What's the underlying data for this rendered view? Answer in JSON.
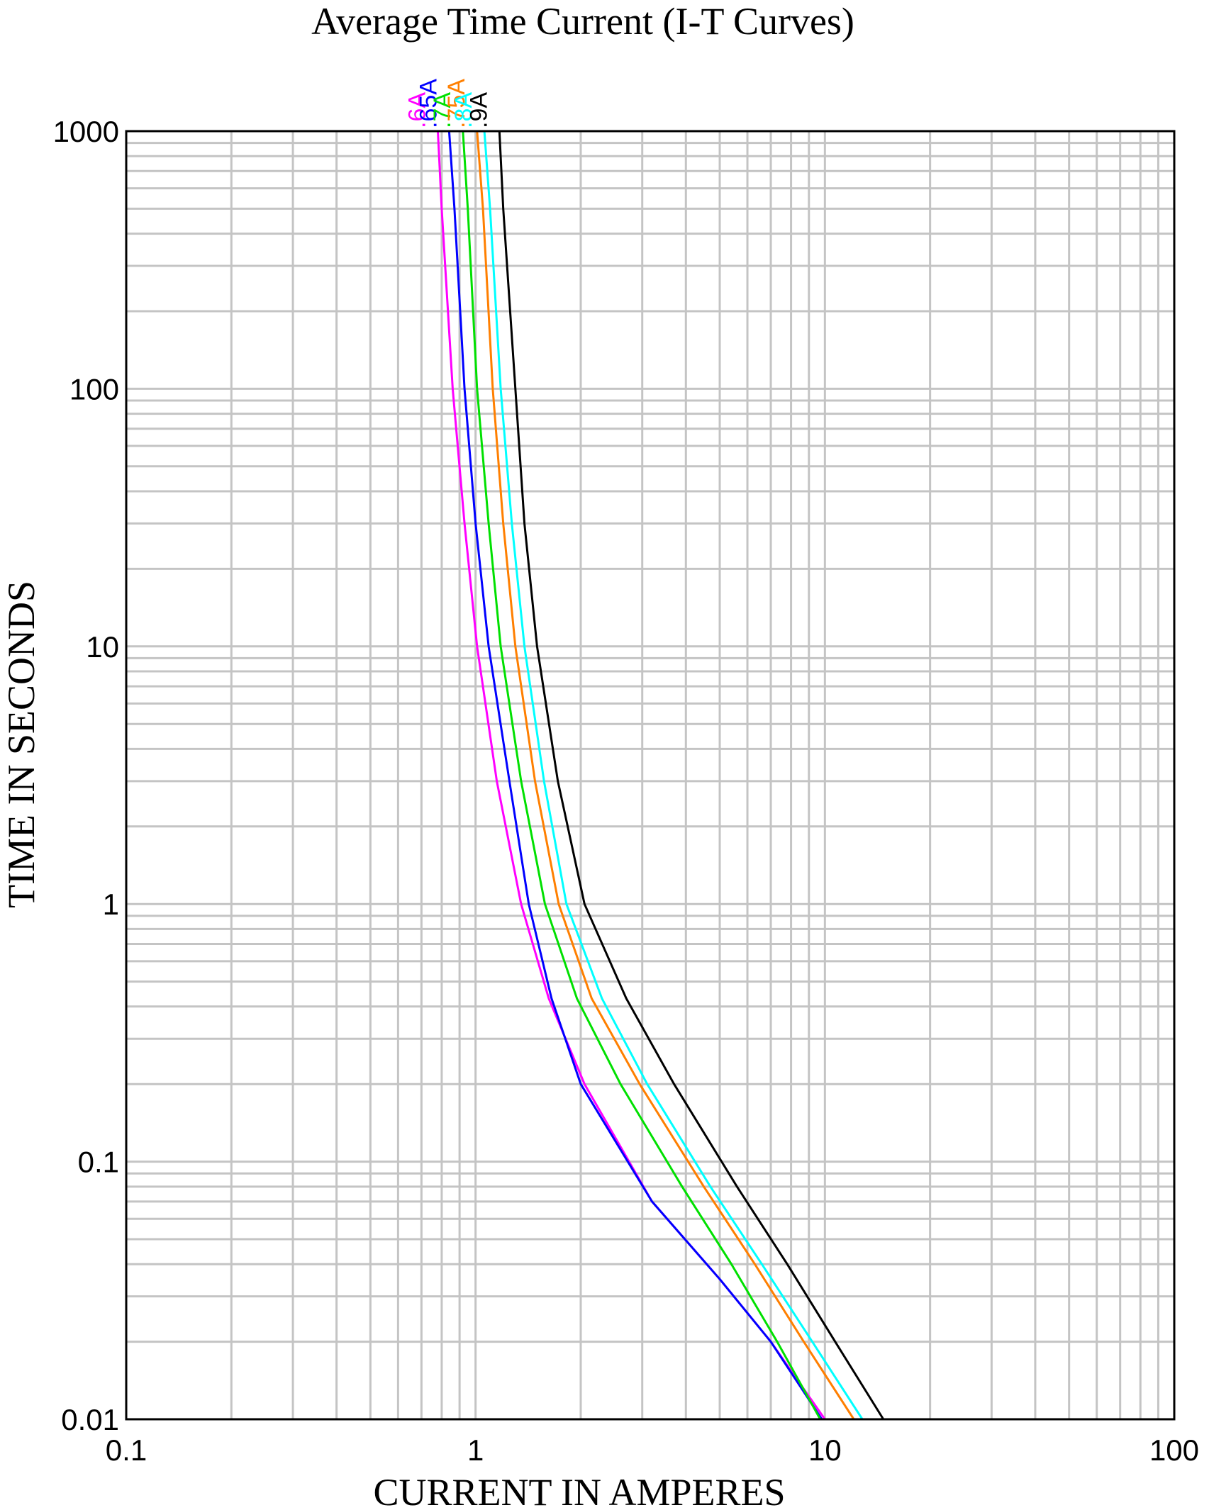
{
  "chart_data": {
    "type": "line",
    "title": "Average Time Current (I-T Curves)",
    "xlabel": "CURRENT IN AMPERES",
    "ylabel": "TIME IN SECONDS",
    "xscale": "log",
    "yscale": "log",
    "xlim": [
      0.1,
      100
    ],
    "ylim": [
      0.01,
      1000
    ],
    "grid": true,
    "xticks": [
      {
        "value": 0.1,
        "label": "0.1"
      },
      {
        "value": 1,
        "label": "1"
      },
      {
        "value": 10,
        "label": "10"
      },
      {
        "value": 100,
        "label": "100"
      }
    ],
    "yticks": [
      {
        "value": 0.01,
        "label": "0.01"
      },
      {
        "value": 0.1,
        "label": "0.1"
      },
      {
        "value": 1,
        "label": "1"
      },
      {
        "value": 10,
        "label": "10"
      },
      {
        "value": 100,
        "label": "100"
      },
      {
        "value": 1000,
        "label": "1000"
      }
    ],
    "series": [
      {
        "name": ".6A",
        "color": "#ff00ff",
        "points": [
          [
            0.78,
            1000
          ],
          [
            0.8,
            500
          ],
          [
            0.86,
            100
          ],
          [
            0.93,
            30
          ],
          [
            1.01,
            10
          ],
          [
            1.15,
            3
          ],
          [
            1.35,
            1
          ],
          [
            1.62,
            0.43
          ],
          [
            2.05,
            0.2
          ],
          [
            3.2,
            0.07
          ],
          [
            5.0,
            0.035
          ],
          [
            7.0,
            0.02
          ],
          [
            10.0,
            0.01
          ]
        ]
      },
      {
        "name": ".65A",
        "color": "#0000ff",
        "points": [
          [
            0.84,
            1000
          ],
          [
            0.87,
            500
          ],
          [
            0.93,
            100
          ],
          [
            1.0,
            30
          ],
          [
            1.09,
            10
          ],
          [
            1.25,
            3
          ],
          [
            1.42,
            1
          ],
          [
            1.65,
            0.43
          ],
          [
            2.0,
            0.2
          ],
          [
            3.2,
            0.07
          ],
          [
            5.0,
            0.035
          ],
          [
            7.0,
            0.02
          ],
          [
            9.8,
            0.01
          ]
        ]
      },
      {
        "name": ".7A",
        "color": "#00e000",
        "points": [
          [
            0.92,
            1000
          ],
          [
            0.95,
            500
          ],
          [
            1.01,
            100
          ],
          [
            1.09,
            30
          ],
          [
            1.18,
            10
          ],
          [
            1.35,
            3
          ],
          [
            1.58,
            1
          ],
          [
            1.95,
            0.43
          ],
          [
            2.6,
            0.2
          ],
          [
            3.9,
            0.08
          ],
          [
            5.4,
            0.04
          ],
          [
            7.3,
            0.02
          ],
          [
            9.7,
            0.01
          ]
        ]
      },
      {
        "name": ".75A",
        "color": "#ff7f00",
        "points": [
          [
            1.01,
            1000
          ],
          [
            1.05,
            500
          ],
          [
            1.12,
            100
          ],
          [
            1.2,
            30
          ],
          [
            1.3,
            10
          ],
          [
            1.48,
            3
          ],
          [
            1.73,
            1
          ],
          [
            2.15,
            0.43
          ],
          [
            2.95,
            0.2
          ],
          [
            4.5,
            0.08
          ],
          [
            6.3,
            0.04
          ],
          [
            8.7,
            0.02
          ],
          [
            12.1,
            0.01
          ]
        ]
      },
      {
        "name": ".8A",
        "color": "#00ffff",
        "points": [
          [
            1.06,
            1000
          ],
          [
            1.1,
            500
          ],
          [
            1.18,
            100
          ],
          [
            1.27,
            30
          ],
          [
            1.38,
            10
          ],
          [
            1.57,
            3
          ],
          [
            1.82,
            1
          ],
          [
            2.3,
            0.43
          ],
          [
            3.1,
            0.2
          ],
          [
            4.7,
            0.08
          ],
          [
            6.6,
            0.04
          ],
          [
            9.2,
            0.02
          ],
          [
            12.8,
            0.01
          ]
        ]
      },
      {
        "name": ".9A",
        "color": "#000000",
        "points": [
          [
            1.17,
            1000
          ],
          [
            1.2,
            500
          ],
          [
            1.3,
            100
          ],
          [
            1.38,
            30
          ],
          [
            1.5,
            10
          ],
          [
            1.72,
            3
          ],
          [
            2.05,
            1
          ],
          [
            2.7,
            0.43
          ],
          [
            3.7,
            0.2
          ],
          [
            5.6,
            0.08
          ],
          [
            7.8,
            0.04
          ],
          [
            10.7,
            0.02
          ],
          [
            14.7,
            0.01
          ]
        ]
      }
    ]
  }
}
